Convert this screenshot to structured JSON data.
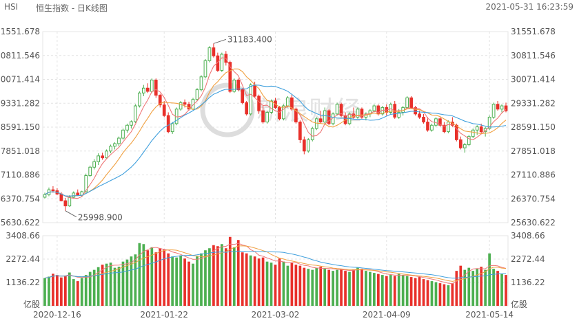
{
  "header": {
    "symbol": "HSI",
    "title": "恒生指数 - 日K线图",
    "timestamp": "2021-05-31 16:23:59"
  },
  "watermark": "新浪财经",
  "colors": {
    "up": "#4caf50",
    "down": "#e8302a",
    "ma5": "#ee7777",
    "ma10": "#f0a040",
    "ma20": "#40a0dd",
    "grid": "#e4e4e4",
    "text": "#555555"
  },
  "chart_data": {
    "type": "candlestick",
    "price_axis": {
      "ticks": [
        "31551.678",
        "30811.546",
        "30071.414",
        "29331.282",
        "28591.150",
        "27851.018",
        "27110.886",
        "26370.754",
        "25630.622"
      ],
      "range": [
        25630.622,
        31551.678
      ]
    },
    "volume_axis": {
      "ticks": [
        "3408.66",
        "2272.44",
        "1136.22"
      ],
      "unit": "亿股",
      "range": [
        0,
        3408.66
      ]
    },
    "x_labels": [
      "2020-12-16",
      "2021-01-22",
      "2021-03-02",
      "2021-04-09",
      "2021-05-14"
    ],
    "x_label_index": [
      3,
      29,
      56,
      83,
      108
    ],
    "annotations": {
      "high": "31183.400",
      "low": "25998.900"
    },
    "ohlc": [
      [
        26420,
        26560,
        26380,
        26500
      ],
      [
        26500,
        26720,
        26450,
        26650
      ],
      [
        26650,
        26760,
        26560,
        26620
      ],
      [
        26620,
        26700,
        26480,
        26520
      ],
      [
        26520,
        26580,
        26290,
        26310
      ],
      [
        26310,
        26400,
        25999,
        26150
      ],
      [
        26150,
        26480,
        26120,
        26420
      ],
      [
        26420,
        26600,
        26380,
        26550
      ],
      [
        26550,
        26660,
        26460,
        26480
      ],
      [
        26480,
        26620,
        26420,
        26590
      ],
      [
        26590,
        27150,
        26560,
        27090
      ],
      [
        27090,
        27400,
        27050,
        27350
      ],
      [
        27350,
        27600,
        27280,
        27520
      ],
      [
        27520,
        27780,
        27420,
        27700
      ],
      [
        27700,
        27800,
        27580,
        27640
      ],
      [
        27640,
        27900,
        27600,
        27850
      ],
      [
        27850,
        28050,
        27780,
        28000
      ],
      [
        28000,
        28120,
        27900,
        28080
      ],
      [
        28080,
        28300,
        28000,
        28250
      ],
      [
        28250,
        28550,
        28200,
        28500
      ],
      [
        28500,
        28700,
        28420,
        28650
      ],
      [
        28650,
        28800,
        28550,
        28760
      ],
      [
        28760,
        29300,
        28720,
        29250
      ],
      [
        29250,
        29700,
        29200,
        29650
      ],
      [
        29650,
        29900,
        29550,
        29800
      ],
      [
        29800,
        29950,
        29650,
        29700
      ],
      [
        29700,
        30100,
        29650,
        30050
      ],
      [
        30050,
        30100,
        29500,
        29580
      ],
      [
        29580,
        29620,
        29200,
        29280
      ],
      [
        29280,
        29400,
        28900,
        28950
      ],
      [
        28950,
        29050,
        28400,
        28450
      ],
      [
        28450,
        28750,
        28380,
        28700
      ],
      [
        28700,
        29200,
        28650,
        29150
      ],
      [
        29150,
        29400,
        29100,
        29350
      ],
      [
        29350,
        29450,
        29200,
        29300
      ],
      [
        29300,
        29380,
        29100,
        29150
      ],
      [
        29150,
        29500,
        29120,
        29450
      ],
      [
        29450,
        29800,
        29400,
        29750
      ],
      [
        29750,
        30200,
        29700,
        30150
      ],
      [
        30150,
        30700,
        30100,
        30650
      ],
      [
        30650,
        31100,
        30600,
        31050
      ],
      [
        31050,
        31183,
        30750,
        30800
      ],
      [
        30800,
        30900,
        30300,
        30350
      ],
      [
        30350,
        30900,
        30300,
        30850
      ],
      [
        30850,
        30950,
        30500,
        30600
      ],
      [
        30600,
        30650,
        29650,
        29700
      ],
      [
        29700,
        30100,
        29650,
        30050
      ],
      [
        30050,
        30100,
        29700,
        29750
      ],
      [
        29750,
        29800,
        29300,
        29350
      ],
      [
        29350,
        29400,
        28950,
        29000
      ],
      [
        29000,
        29950,
        28950,
        29900
      ],
      [
        29900,
        30000,
        29500,
        29550
      ],
      [
        29550,
        29600,
        29000,
        29100
      ],
      [
        29100,
        29250,
        28700,
        28750
      ],
      [
        28750,
        29100,
        28700,
        29050
      ],
      [
        29050,
        29450,
        29000,
        29400
      ],
      [
        29400,
        29500,
        29150,
        29200
      ],
      [
        29200,
        29250,
        28800,
        28850
      ],
      [
        28850,
        29300,
        28800,
        29250
      ],
      [
        29250,
        29550,
        29200,
        29500
      ],
      [
        29500,
        29600,
        29100,
        29150
      ],
      [
        29150,
        29200,
        28700,
        28750
      ],
      [
        28750,
        28800,
        28100,
        28200
      ],
      [
        28200,
        28300,
        27750,
        27850
      ],
      [
        27850,
        28250,
        27800,
        28200
      ],
      [
        28200,
        28600,
        28150,
        28550
      ],
      [
        28550,
        28900,
        28500,
        28850
      ],
      [
        28850,
        29100,
        28700,
        28750
      ],
      [
        28750,
        29200,
        28700,
        29100
      ],
      [
        29100,
        29150,
        28650,
        28700
      ],
      [
        28700,
        29050,
        28650,
        29000
      ],
      [
        29000,
        29350,
        28950,
        29300
      ],
      [
        29300,
        29350,
        28900,
        28950
      ],
      [
        28950,
        29050,
        28650,
        28700
      ],
      [
        28700,
        29050,
        28650,
        29000
      ],
      [
        29000,
        29200,
        28850,
        28900
      ],
      [
        28900,
        29200,
        28850,
        29150
      ],
      [
        29150,
        29200,
        28850,
        28900
      ],
      [
        28900,
        29050,
        28800,
        29000
      ],
      [
        29000,
        29150,
        28900,
        29100
      ],
      [
        29100,
        29300,
        29050,
        29250
      ],
      [
        29250,
        29300,
        28950,
        29000
      ],
      [
        29000,
        29250,
        28950,
        29200
      ],
      [
        29200,
        29300,
        28950,
        29050
      ],
      [
        29050,
        29350,
        29000,
        29300
      ],
      [
        29300,
        29400,
        28850,
        28900
      ],
      [
        28900,
        29150,
        28850,
        29050
      ],
      [
        29050,
        29250,
        28950,
        29200
      ],
      [
        29200,
        29550,
        29150,
        29500
      ],
      [
        29500,
        29550,
        29150,
        29200
      ],
      [
        29200,
        29250,
        28950,
        29000
      ],
      [
        29000,
        29100,
        28850,
        28900
      ],
      [
        28900,
        29000,
        28700,
        28750
      ],
      [
        28750,
        28900,
        28450,
        28500
      ],
      [
        28500,
        28700,
        28450,
        28650
      ],
      [
        28650,
        28900,
        28600,
        28850
      ],
      [
        28850,
        28900,
        28600,
        28650
      ],
      [
        28650,
        28750,
        28400,
        28450
      ],
      [
        28450,
        28800,
        28400,
        28750
      ],
      [
        28750,
        28900,
        28600,
        28650
      ],
      [
        28650,
        28700,
        28150,
        28200
      ],
      [
        28200,
        28300,
        27900,
        27950
      ],
      [
        27950,
        28100,
        27800,
        28050
      ],
      [
        28050,
        28350,
        28000,
        28300
      ],
      [
        28300,
        28550,
        28250,
        28500
      ],
      [
        28500,
        28650,
        28350,
        28600
      ],
      [
        28600,
        28700,
        28400,
        28450
      ],
      [
        28450,
        28600,
        28300,
        28550
      ],
      [
        28550,
        28950,
        28500,
        28900
      ],
      [
        28900,
        29350,
        28850,
        29300
      ],
      [
        29300,
        29400,
        29100,
        29150
      ],
      [
        29150,
        29300,
        29050,
        29250
      ],
      [
        29250,
        29350,
        29050,
        29100
      ]
    ],
    "volume": [
      1350,
      1420,
      1560,
      1500,
      1380,
      1450,
      1620,
      1300,
      1200,
      1350,
      1500,
      1650,
      1750,
      1880,
      2000,
      2050,
      2100,
      1850,
      1900,
      2150,
      2250,
      2400,
      2500,
      3050,
      3000,
      2700,
      2850,
      2600,
      2800,
      2750,
      2550,
      2400,
      2350,
      2450,
      2300,
      2150,
      2050,
      2400,
      2550,
      2700,
      2800,
      2950,
      2900,
      3000,
      2800,
      3350,
      2850,
      3200,
      2600,
      2550,
      2450,
      2400,
      2300,
      2350,
      2150,
      2100,
      2000,
      2300,
      2150,
      1950,
      2100,
      2000,
      1950,
      1850,
      1800,
      1750,
      1850,
      1900,
      1800,
      1750,
      1700,
      1750,
      1800,
      1700,
      1650,
      1750,
      1850,
      1800,
      1700,
      1650,
      1600,
      1550,
      1500,
      1450,
      1500,
      1450,
      1550,
      1500,
      1450,
      1400,
      1350,
      1400,
      1300,
      1250,
      1200,
      1150,
      1100,
      1050,
      1000,
      1100,
      1700,
      1950,
      1750,
      1850,
      1700,
      1800,
      1900,
      1750,
      2550,
      1800,
      1700,
      1550,
      1500
    ]
  }
}
